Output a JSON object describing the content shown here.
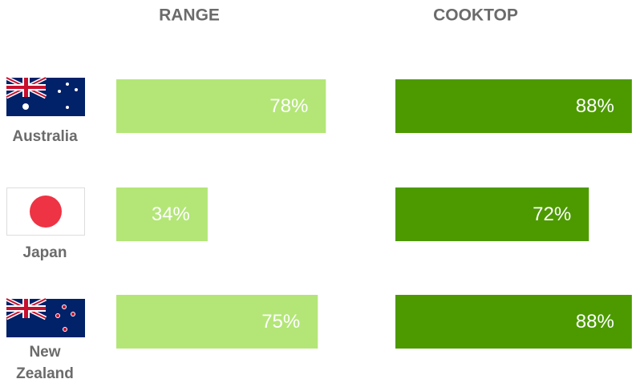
{
  "chart_data": {
    "type": "bar",
    "categories": [
      "Australia",
      "Japan",
      "New Zealand"
    ],
    "series": [
      {
        "name": "RANGE",
        "color": "#b3e677",
        "values": [
          78,
          34,
          75
        ],
        "value_labels": [
          "78%",
          "34%",
          "75%"
        ]
      },
      {
        "name": "COOKTOP",
        "color": "#4c9a00",
        "values": [
          88,
          72,
          88
        ],
        "value_labels": [
          "88%",
          "72%",
          "88%"
        ]
      }
    ]
  }
}
